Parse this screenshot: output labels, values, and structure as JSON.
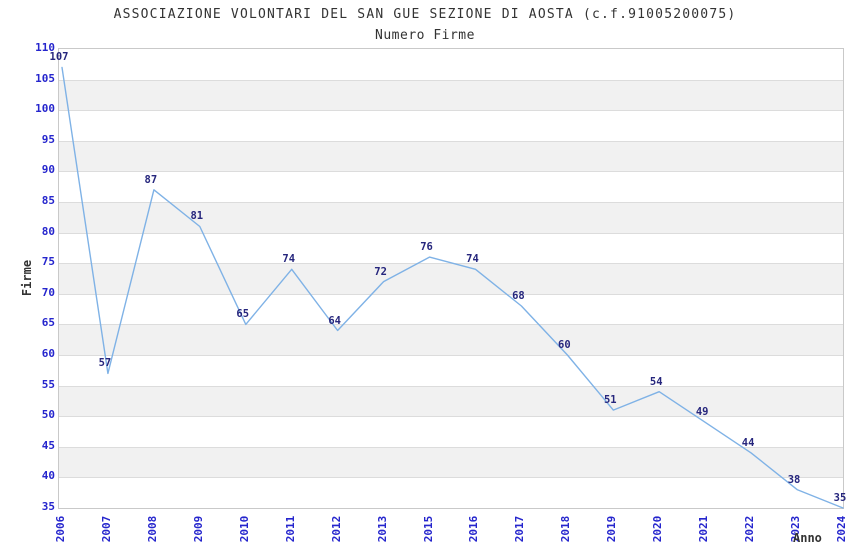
{
  "chart_data": {
    "type": "line",
    "title": "ASSOCIAZIONE VOLONTARI DEL SAN GUE SEZIONE DI AOSTA (c.f.91005200075)",
    "subtitle": "Numero Firme",
    "xlabel": "Anno",
    "ylabel": "Firme",
    "categories": [
      "2006",
      "2007",
      "2008",
      "2009",
      "2010",
      "2011",
      "2012",
      "2013",
      "2015",
      "2016",
      "2017",
      "2018",
      "2019",
      "2020",
      "2021",
      "2022",
      "2023",
      "2024"
    ],
    "values": [
      107,
      57,
      87,
      81,
      65,
      74,
      64,
      72,
      76,
      74,
      68,
      60,
      51,
      54,
      49,
      44,
      38,
      35
    ],
    "ylim": [
      35,
      110
    ],
    "ytick_step": 5,
    "yticks": [
      110,
      105,
      100,
      95,
      90,
      85,
      80,
      75,
      70,
      65,
      60,
      55,
      50,
      45,
      40,
      35
    ],
    "grid": "horizontal-alternating-bands",
    "legend": "none",
    "data_labels": "shown",
    "colors": {
      "line": "#7fb2e6",
      "tick_label": "#2525cd",
      "data_label": "#26267d",
      "title_text": "#333333",
      "band_fill": "#f1f1f1",
      "band_line": "#dcdcdc",
      "plot_border": "#c9c9c9",
      "background": "#ffffff"
    }
  }
}
